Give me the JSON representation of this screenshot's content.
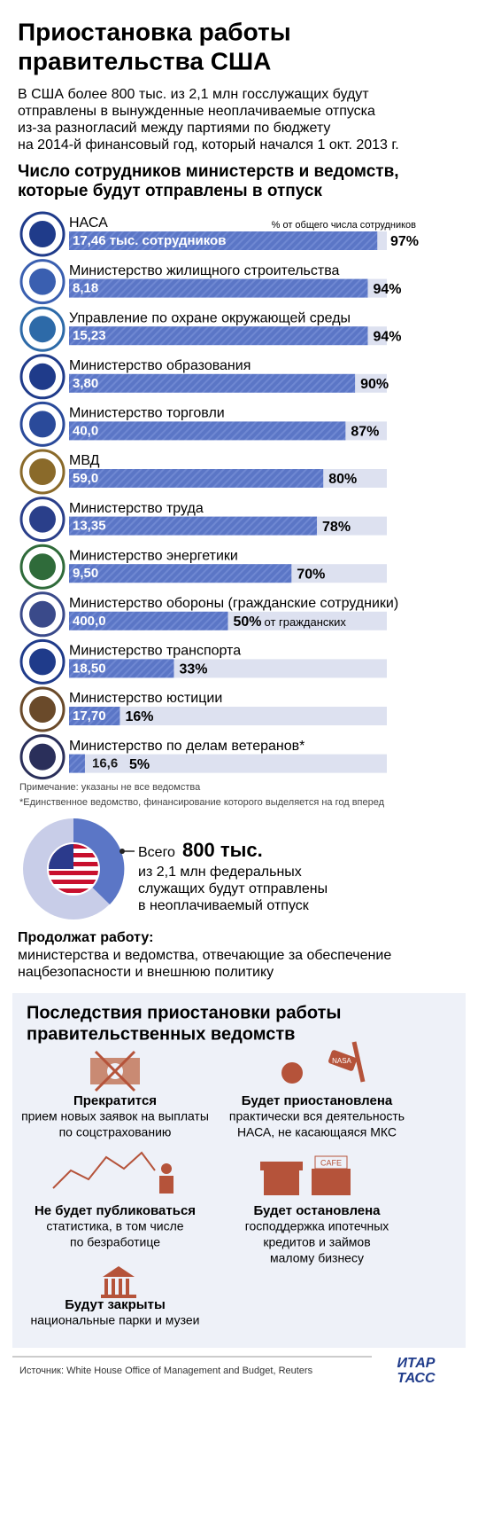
{
  "header": {
    "title_lines": [
      "Приостановка работы",
      "правительства США"
    ],
    "intro_lines": [
      "В США более 800 тыс. из 2,1 млн госслужащих будут",
      "отправлены в вынужденные неоплачиваемые отпуска",
      "из-за разногласий между партиями по бюджету",
      "на 2014-й финансовый год, который начался 1 окт. 2013 г."
    ]
  },
  "chart_data": {
    "type": "bar",
    "orientation": "horizontal",
    "title_lines": [
      "Число сотрудников министерств и ведомств,",
      "которые будут отправлены в отпуск"
    ],
    "value_axis_label": "% от общего числа сотрудников",
    "categories": [
      "НАСА",
      "Министерство жилищного строительства",
      "Управление по охране окружающей среды",
      "Министерство образования",
      "Министерство торговли",
      "МВД",
      "Министерство труда",
      "Министерство энергетики",
      "Министерство обороны (гражданские сотрудники)",
      "Министерство транспорта",
      "Министерство юстиции",
      "Министерство по делам ветеранов*"
    ],
    "values": [
      97,
      94,
      94,
      90,
      87,
      80,
      78,
      70,
      50,
      33,
      16,
      5
    ],
    "value_labels": [
      "97%",
      "94%",
      "94%",
      "90%",
      "87%",
      "80%",
      "78%",
      "70%",
      "50%",
      "33%",
      "16%",
      "5%"
    ],
    "counts": [
      "17,46 тыс. сотрудников",
      "8,18",
      "15,23",
      "3,80",
      "40,0",
      "59,0",
      "13,35",
      "9,50",
      "400,0",
      "18,50",
      "17,70",
      "16,6"
    ],
    "annotation": "от гражданских",
    "xlim": [
      0,
      100
    ],
    "color": "#5b76c6",
    "track_color": "#dde1f0",
    "notes": [
      "Примечание: указаны не все ведомства",
      "*Единственное ведомство, финансирование которого выделяется на год вперед"
    ]
  },
  "donut": {
    "lead": "Всего",
    "big": "800 тыс.",
    "lines": [
      "из 2,1 млн федеральных",
      "служащих будут отправлены",
      "в неоплачиваемый отпуск"
    ]
  },
  "continue": {
    "title": "Продолжат работу:",
    "lines": [
      "министерства и ведомства, отвечающие за обеспечение",
      "нацбезопасности и внешнюю политику"
    ]
  },
  "consequences": {
    "title_lines": [
      "Последствия приостановки работы",
      "правительственных ведомств"
    ],
    "items": [
      {
        "title": "Прекратится",
        "lines": [
          "прием новых заявок на выплаты",
          "по соцстрахованию"
        ]
      },
      {
        "title": "Будет приостановлена",
        "lines": [
          "практически вся деятельность",
          "НАСА, не касающаяся МКС"
        ]
      },
      {
        "title": "Не будет публиковаться",
        "lines": [
          "статистика, в том числе",
          "по безработице"
        ]
      },
      {
        "title": "Будет остановлена",
        "lines": [
          "господдержка ипотечных",
          "кредитов и займов",
          "малому бизнесу"
        ]
      },
      {
        "title": "Будут закрыты",
        "lines": [
          "национальные парки и музеи"
        ]
      }
    ]
  },
  "footer": {
    "source": "Источник: White House Office of Management and Budget, Reuters",
    "logo_lines": [
      "ИТАР",
      "ТАСС"
    ]
  }
}
